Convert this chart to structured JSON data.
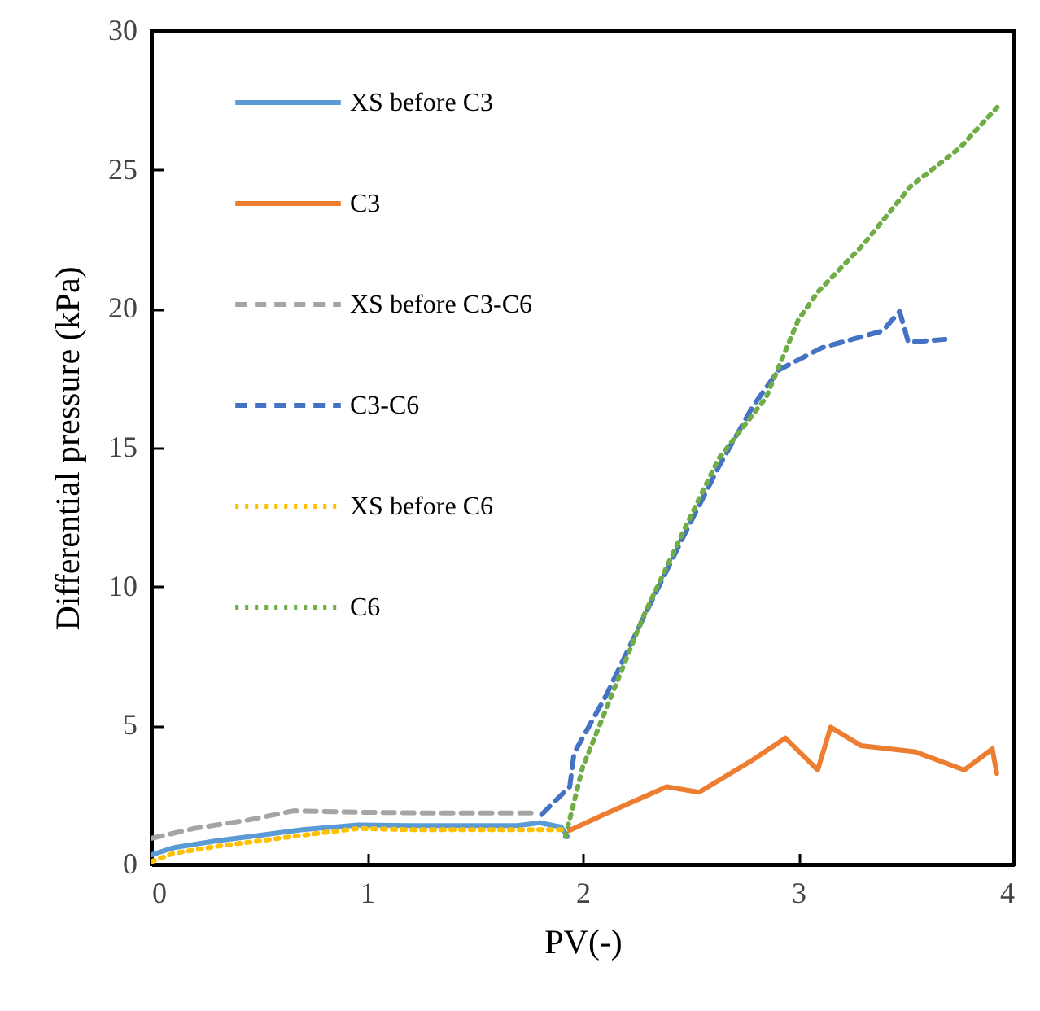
{
  "chart_data": {
    "type": "line",
    "xlabel": "PV(-)",
    "ylabel": "Differential pressure (kPa)",
    "xlim": [
      0,
      4
    ],
    "xticks": [
      0,
      1,
      2,
      3,
      4
    ],
    "ylim": [
      0,
      30
    ],
    "yticks": [
      0,
      5,
      10,
      15,
      20,
      25,
      30
    ],
    "grid": false,
    "legend": "top left",
    "marker": "none",
    "series": [
      {
        "name": "XS before C3",
        "color": "#5b9bd5",
        "line_style": "solid",
        "x": [
          0,
          0.1,
          0.3,
          0.5,
          0.7,
          0.96,
          1.2,
          1.5,
          1.7,
          1.8,
          1.9,
          1.93
        ],
        "values": [
          0.35,
          0.6,
          0.85,
          1.05,
          1.25,
          1.42,
          1.4,
          1.4,
          1.4,
          1.5,
          1.35,
          1.0
        ]
      },
      {
        "name": "C3",
        "color": "#ed7d31",
        "line_style": "solid",
        "x": [
          1.94,
          2.1,
          2.39,
          2.54,
          2.79,
          2.94,
          3.09,
          3.15,
          3.29,
          3.54,
          3.77,
          3.9,
          3.92
        ],
        "values": [
          1.23,
          1.8,
          2.8,
          2.6,
          3.77,
          4.55,
          3.4,
          4.94,
          4.28,
          4.06,
          3.4,
          4.16,
          3.28
        ]
      },
      {
        "name": "XS before C3-C6",
        "color": "#a5a5a5",
        "line_style": "dashed",
        "x": [
          0,
          0.2,
          0.45,
          0.66,
          0.96,
          1.3,
          1.6,
          1.79
        ],
        "values": [
          0.94,
          1.3,
          1.6,
          1.93,
          1.88,
          1.85,
          1.85,
          1.85
        ]
      },
      {
        "name": "C3-C6",
        "color": "#4472c4",
        "line_style": "dashed",
        "x": [
          1.81,
          1.94,
          1.96,
          2.11,
          2.28,
          2.48,
          2.63,
          2.79,
          2.91,
          3.11,
          3.39,
          3.47,
          3.51,
          3.68
        ],
        "values": [
          1.8,
          2.8,
          4.0,
          6.1,
          8.85,
          12.0,
          14.3,
          16.5,
          17.8,
          18.6,
          19.2,
          19.9,
          18.8,
          18.9
        ]
      },
      {
        "name": "XS before C6",
        "color": "#ffc000",
        "line_style": "dotted",
        "x": [
          0,
          0.1,
          0.3,
          0.5,
          0.7,
          0.96,
          1.2,
          1.5,
          1.93
        ],
        "values": [
          0.1,
          0.4,
          0.65,
          0.85,
          1.05,
          1.3,
          1.25,
          1.25,
          1.25
        ]
      },
      {
        "name": "C6",
        "color": "#70ad47",
        "line_style": "dotted",
        "x": [
          1.92,
          2.0,
          2.28,
          2.48,
          2.63,
          2.85,
          3.0,
          3.09,
          3.3,
          3.52,
          3.75,
          3.94
        ],
        "values": [
          1.0,
          3.5,
          8.9,
          12.2,
          14.6,
          16.8,
          19.6,
          20.6,
          22.3,
          24.4,
          25.8,
          27.4
        ]
      }
    ]
  }
}
